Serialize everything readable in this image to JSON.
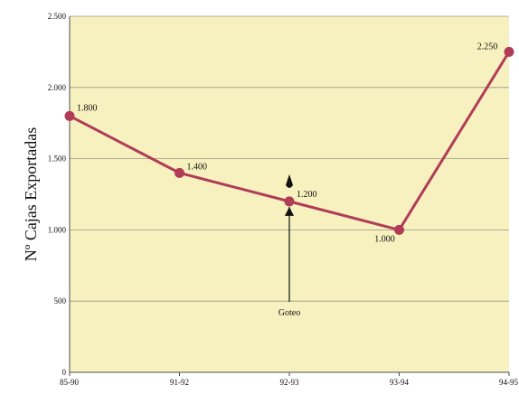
{
  "colors": {
    "background": "#f6f1bf",
    "series": "#b13c57",
    "grid": "#4d4d4d",
    "text": "#111111"
  },
  "chart_data": {
    "type": "line",
    "title": "",
    "xlabel": "",
    "ylabel": "Nº Cajas Exportadas",
    "categories": [
      "85-90",
      "91-92",
      "92-93",
      "93-94",
      "94-95"
    ],
    "values": [
      1800,
      1400,
      1200,
      1000,
      2250
    ],
    "data_labels": [
      "1.800",
      "1.400",
      "1.200",
      "1.000",
      "2.250"
    ],
    "ylim": [
      0,
      2500
    ],
    "yticks": [
      0,
      500,
      1000,
      1500,
      2000,
      2500
    ],
    "ytick_labels": [
      "0",
      "500",
      "1.000",
      "1.500",
      "2.000",
      "2.500"
    ],
    "grid": true,
    "annotation": {
      "text": "Goteo",
      "category": "92-93",
      "value": 1200
    }
  }
}
